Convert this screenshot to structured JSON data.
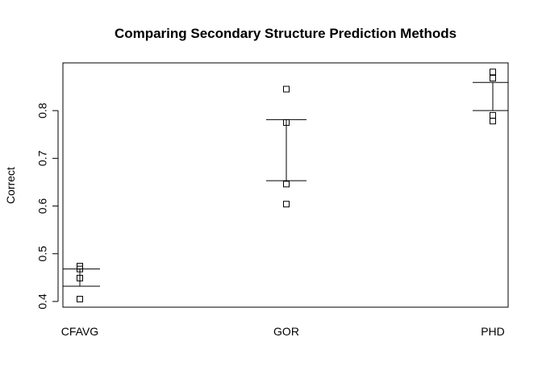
{
  "chart_data": {
    "type": "strip-errorbar",
    "title": "Comparing Secondary Structure Prediction Methods",
    "y_label": "Correct",
    "categories": [
      "CFAVG",
      "GOR",
      "PHD"
    ],
    "points": [
      [
        0.474,
        0.468,
        0.449,
        0.405
      ],
      [
        0.845,
        0.775,
        0.646,
        0.604
      ],
      [
        0.881,
        0.868,
        0.79,
        0.778
      ]
    ],
    "upper": [
      0.468,
      0.781,
      0.859
    ],
    "lower": [
      0.432,
      0.653,
      0.8
    ],
    "ylim": [
      0.388,
      0.9
    ],
    "yticks": [
      0.4,
      0.5,
      0.6,
      0.7,
      0.8
    ]
  }
}
